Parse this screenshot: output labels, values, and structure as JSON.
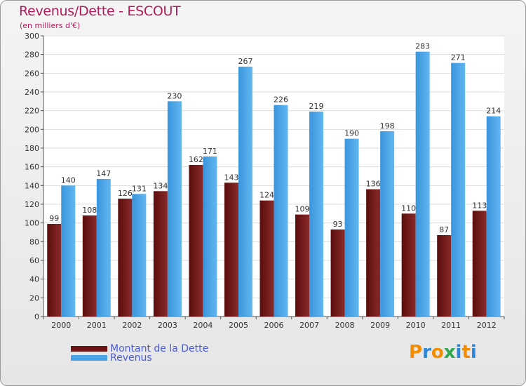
{
  "chart_data": {
    "type": "bar",
    "title": "Revenus/Dette - ESCOUT",
    "subtitle": "(en milliers d'€)",
    "xlabel": "",
    "ylabel": "",
    "categories": [
      "2000",
      "2001",
      "2002",
      "2003",
      "2004",
      "2005",
      "2006",
      "2007",
      "2008",
      "2009",
      "2010",
      "2011",
      "2012"
    ],
    "series": [
      {
        "name": "Montant de la Dette",
        "color": "#6e1414",
        "values": [
          99,
          108,
          126,
          134,
          162,
          143,
          124,
          109,
          93,
          136,
          110,
          87,
          113
        ]
      },
      {
        "name": "Revenus",
        "color": "#4aa3e6",
        "values": [
          140,
          147,
          131,
          230,
          171,
          267,
          226,
          219,
          190,
          198,
          283,
          271,
          214
        ]
      }
    ],
    "ylim": [
      0,
      300
    ],
    "ytick_step": 20,
    "grid": true,
    "legend_position": "bottom-left"
  },
  "logo": {
    "text": "Proxiti",
    "colors": [
      "#f28c00",
      "#2f86d6",
      "#f28c00",
      "#2fa84f",
      "#2f86d6",
      "#f28c00",
      "#2f86d6"
    ]
  }
}
